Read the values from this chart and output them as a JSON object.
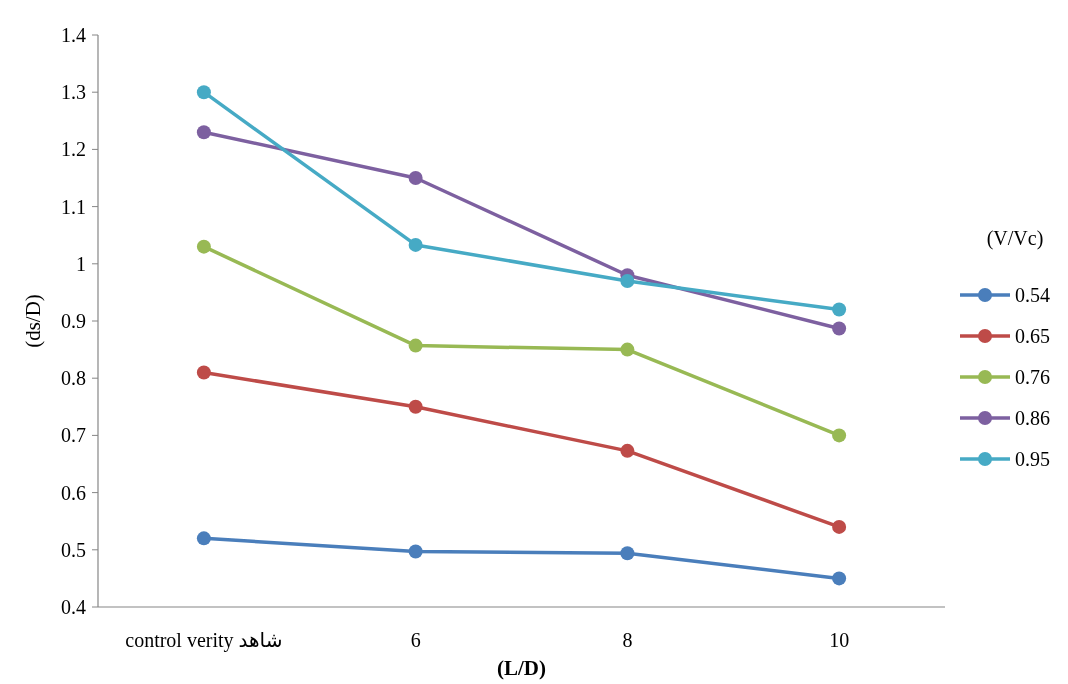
{
  "chart_data": {
    "type": "line",
    "xlabel": "(L/D)",
    "ylabel": "(ds/D)",
    "legend_title": "(V/Vc)",
    "categories": [
      "control verity شاهد",
      "6",
      "8",
      "10"
    ],
    "series": [
      {
        "name": "0.54",
        "color": "#4a7ebb",
        "values": [
          0.52,
          0.497,
          0.494,
          0.45
        ]
      },
      {
        "name": "0.65",
        "color": "#be4b48",
        "values": [
          0.81,
          0.75,
          0.673,
          0.54
        ]
      },
      {
        "name": "0.76",
        "color": "#98b954",
        "values": [
          1.03,
          0.857,
          0.85,
          0.7
        ]
      },
      {
        "name": "0.86",
        "color": "#7d60a0",
        "values": [
          1.23,
          1.15,
          0.98,
          0.887
        ]
      },
      {
        "name": "0.95",
        "color": "#46aac5",
        "values": [
          1.3,
          1.033,
          0.97,
          0.92
        ]
      }
    ],
    "ylim": [
      0.4,
      1.4
    ],
    "yticks": [
      0.4,
      0.5,
      0.6,
      0.7,
      0.8,
      0.9,
      1,
      1.1,
      1.2,
      1.3,
      1.4
    ],
    "marker": "circle",
    "line_style": "solid",
    "legend": "right",
    "grid": false
  }
}
